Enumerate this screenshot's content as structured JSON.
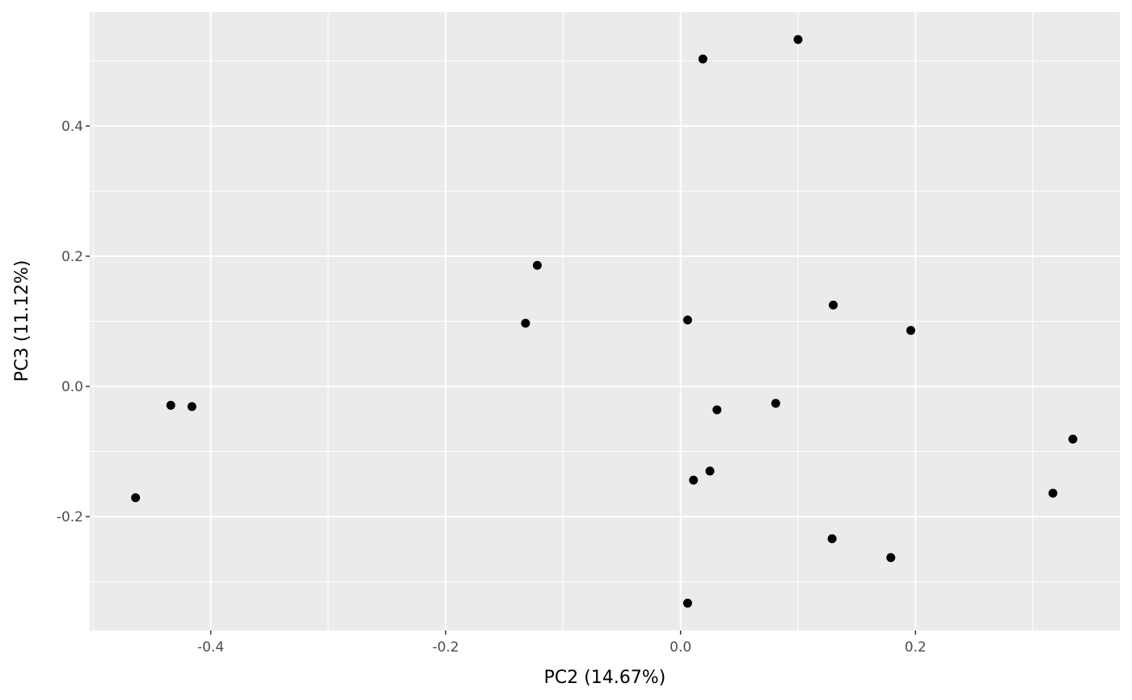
{
  "chart_data": {
    "type": "scatter",
    "title": "",
    "xlabel": "PC2 (14.67%)",
    "ylabel": "PC3 (11.12%)",
    "xlim": [
      -0.503,
      0.374
    ],
    "ylim": [
      -0.375,
      0.575
    ],
    "xticks": [
      -0.4,
      -0.2,
      0.0,
      0.2
    ],
    "xtick_labels": [
      "-0.4",
      "-0.2",
      "0.0",
      "0.2"
    ],
    "yticks": [
      -0.2,
      0.0,
      0.2,
      0.4
    ],
    "ytick_labels": [
      "-0.2",
      "0.0",
      "0.2",
      "0.4"
    ],
    "grid": true,
    "legend": "none",
    "colors": {
      "panel": "#ebebeb",
      "grid": "#ffffff",
      "point": "#000000"
    },
    "points": [
      {
        "x": 0.019,
        "y": 0.503
      },
      {
        "x": 0.1,
        "y": 0.533
      },
      {
        "x": -0.122,
        "y": 0.186
      },
      {
        "x": -0.132,
        "y": 0.097
      },
      {
        "x": 0.006,
        "y": 0.102
      },
      {
        "x": 0.13,
        "y": 0.125
      },
      {
        "x": 0.196,
        "y": 0.086
      },
      {
        "x": -0.434,
        "y": -0.029
      },
      {
        "x": -0.416,
        "y": -0.031
      },
      {
        "x": -0.464,
        "y": -0.171
      },
      {
        "x": 0.031,
        "y": -0.036
      },
      {
        "x": 0.081,
        "y": -0.026
      },
      {
        "x": 0.025,
        "y": -0.13
      },
      {
        "x": 0.011,
        "y": -0.144
      },
      {
        "x": 0.334,
        "y": -0.081
      },
      {
        "x": 0.317,
        "y": -0.164
      },
      {
        "x": 0.129,
        "y": -0.234
      },
      {
        "x": 0.179,
        "y": -0.263
      },
      {
        "x": 0.006,
        "y": -0.333
      }
    ]
  }
}
